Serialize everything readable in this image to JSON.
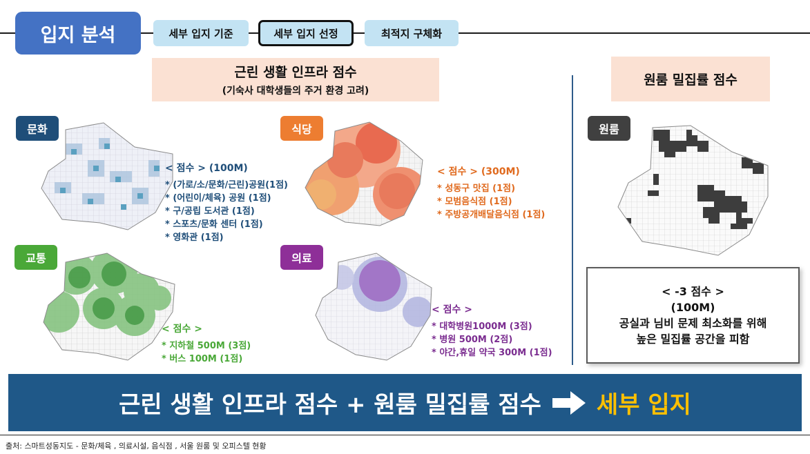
{
  "header": {
    "main_tag": "입지 분석",
    "steps": [
      "세부 입지 기준",
      "세부 입지 선정",
      "최적지 구체화"
    ],
    "active_step": 1
  },
  "infra": {
    "title": "근린 생활 인프라 점수",
    "subtitle": "(기숙사 대학생들의 주거 환경 고려)"
  },
  "oneroom_panel": {
    "title": "원룸 밀집률 점수"
  },
  "categories": {
    "culture": {
      "label": "문화",
      "color": "#1f4e79",
      "score_title": "< 점수 > (100M)",
      "items": [
        "* (가로/소/문화/근린)공원(1점)",
        "* (어린이/체육) 공원 (1점)",
        "* 구/공립 도서관 (1점)",
        "* 스포츠/문화 센터 (1점)",
        "* 영화관 (1점)"
      ],
      "text_color": "#1f4e79"
    },
    "food": {
      "label": "식당",
      "color": "#ed7d31",
      "score_title": "< 점수 > (300M)",
      "items": [
        "* 성동구 맛집 (1점)",
        "* 모범음식점 (1점)",
        "* 주방공개배달음식점 (1점)"
      ],
      "text_color": "#e06a1e"
    },
    "transit": {
      "label": "교통",
      "color": "#4aa838",
      "score_title": "< 점수 >",
      "items": [
        "* 지하철 500M (3점)",
        "* 버스 100M (1점)"
      ],
      "text_color": "#4aa838"
    },
    "medical": {
      "label": "의료",
      "color": "#8e2f98",
      "score_title": "< 점수 >",
      "items": [
        "* 대학병원1000M (3점)",
        "* 병원 500M (2점)",
        "* 야간,휴일 약국 300M (1점)"
      ],
      "text_color": "#7b2d90"
    },
    "oneroom": {
      "label": "원룸",
      "color": "#404040"
    }
  },
  "note": {
    "lines": [
      "< -3 점수 >",
      "(100M)",
      "공실과 님비 문제 최소화를 위해",
      "높은 밀집률 공간을 피함"
    ]
  },
  "banner": {
    "text": "근린 생활 인프라 점수 + 원룸 밀집률 점수",
    "arrow_icon": "right-arrow-icon",
    "highlight": "세부 입지"
  },
  "source": "출처: 스마트성동지도 - 문화/체육 , 의료시설, 음식점 , 서울 원룸 및 오피스텔 현황"
}
